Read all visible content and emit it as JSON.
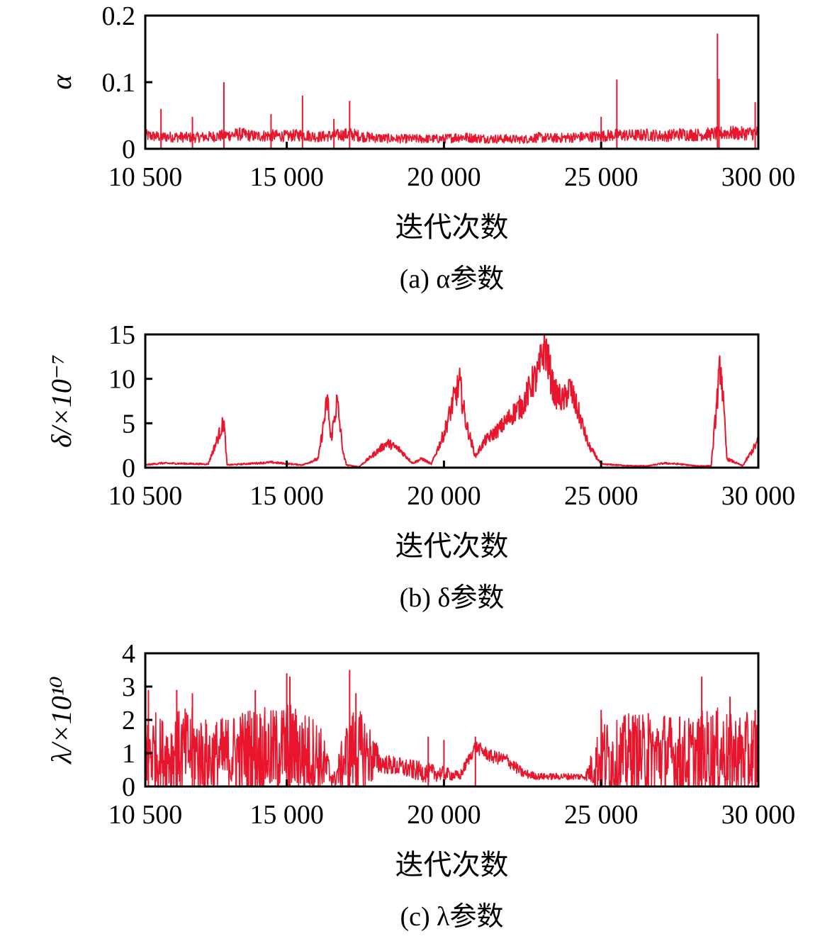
{
  "figure": {
    "line_color": "#e8152c"
  },
  "chart_data": [
    {
      "type": "line",
      "ylabel": "α",
      "xlabel": "迭代次数",
      "caption": "(a) α参数",
      "xlim": [
        10500,
        30000
      ],
      "ylim": [
        0,
        0.2
      ],
      "x_ticks": [
        10500,
        15000,
        20000,
        25000,
        30000
      ],
      "x_tick_labels": [
        "10 500",
        "15 000",
        "20 000",
        "25 000",
        "300 00"
      ],
      "y_ticks": [
        0,
        0.1,
        0.2
      ],
      "y_tick_labels": [
        "0",
        "0.1",
        "0.2"
      ],
      "series": [
        {
          "x": [
            10500,
            11000,
            11500,
            12000,
            12500,
            13000,
            13500,
            14000,
            14500,
            15000,
            15500,
            16000,
            16500,
            17000,
            17500,
            18000,
            18500,
            19000,
            19500,
            20000,
            20500,
            21000,
            21500,
            22000,
            22500,
            23000,
            23500,
            24000,
            24500,
            25000,
            25500,
            26000,
            26500,
            27000,
            27500,
            28000,
            28500,
            29000,
            29500,
            30000
          ],
          "y": [
            0.02,
            0.018,
            0.018,
            0.017,
            0.018,
            0.02,
            0.022,
            0.019,
            0.02,
            0.019,
            0.021,
            0.018,
            0.02,
            0.022,
            0.018,
            0.016,
            0.015,
            0.015,
            0.015,
            0.015,
            0.018,
            0.016,
            0.015,
            0.015,
            0.014,
            0.017,
            0.016,
            0.017,
            0.018,
            0.019,
            0.021,
            0.02,
            0.021,
            0.019,
            0.022,
            0.021,
            0.022,
            0.024,
            0.023,
            0.024
          ],
          "spikes": [
            [
              11000,
              0.06
            ],
            [
              12000,
              0.048
            ],
            [
              13000,
              0.1
            ],
            [
              14500,
              0.052
            ],
            [
              15500,
              0.08
            ],
            [
              16500,
              0.045
            ],
            [
              17000,
              0.072
            ],
            [
              25000,
              0.048
            ],
            [
              25500,
              0.104
            ],
            [
              28700,
              0.173
            ],
            [
              28750,
              0.105
            ],
            [
              29900,
              0.07
            ]
          ]
        }
      ]
    },
    {
      "type": "line",
      "ylabel": "δ/×10⁻⁷",
      "xlabel": "迭代次数",
      "caption": "(b) δ参数",
      "xlim": [
        10500,
        30000
      ],
      "ylim": [
        0,
        15
      ],
      "x_ticks": [
        10500,
        15000,
        20000,
        25000,
        30000
      ],
      "x_tick_labels": [
        "10 500",
        "15 000",
        "20 000",
        "25 000",
        "30 000"
      ],
      "y_ticks": [
        0,
        5,
        10,
        15
      ],
      "y_tick_labels": [
        "0",
        "5",
        "10",
        "15"
      ],
      "series": [
        {
          "x": [
            10500,
            11000,
            12500,
            13000,
            13100,
            14500,
            15500,
            16000,
            16300,
            16400,
            16600,
            16800,
            16900,
            17300,
            17800,
            18200,
            18600,
            19000,
            19300,
            19600,
            20000,
            20300,
            20500,
            20700,
            21000,
            21300,
            21800,
            22300,
            22500,
            22800,
            23000,
            23200,
            23500,
            23800,
            24000,
            24300,
            24600,
            25000,
            25500,
            26000,
            26500,
            27000,
            27500,
            28000,
            28500,
            28800,
            29000,
            29500,
            30000
          ],
          "y": [
            0.3,
            0.5,
            0.4,
            5.2,
            0.3,
            0.6,
            0.3,
            1.0,
            7.8,
            3.0,
            7.5,
            1.5,
            0.3,
            0.1,
            1.6,
            2.8,
            2.0,
            0.5,
            1.0,
            0.4,
            3.8,
            7.5,
            9.5,
            5.0,
            1.3,
            3.0,
            4.5,
            6.5,
            7.0,
            9.5,
            10.5,
            14.0,
            8.5,
            7.5,
            9.0,
            6.0,
            2.5,
            0.4,
            0.3,
            0.2,
            0.2,
            0.5,
            0.4,
            0.2,
            0.2,
            12.0,
            1.0,
            0.2,
            3.0
          ]
        }
      ]
    },
    {
      "type": "line",
      "ylabel": "λ/×10¹⁰",
      "xlabel": "迭代次数",
      "caption": "(c) λ参数",
      "xlim": [
        10500,
        30000
      ],
      "ylim": [
        0,
        4
      ],
      "x_ticks": [
        10500,
        15000,
        20000,
        25000,
        30000
      ],
      "x_tick_labels": [
        "10 500",
        "15 000",
        "20 000",
        "25 000",
        "30 000"
      ],
      "y_ticks": [
        0,
        1,
        2,
        3,
        4
      ],
      "y_tick_labels": [
        "0",
        "1",
        "2",
        "3",
        "4"
      ],
      "series": [
        {
          "x": [
            10500,
            11000,
            11500,
            12000,
            12500,
            13000,
            13500,
            14000,
            14500,
            15000,
            15500,
            16000,
            16500,
            17000,
            17500,
            18000,
            18500,
            19000,
            19500,
            20000,
            20500,
            21000,
            21500,
            22000,
            22500,
            23000,
            23500,
            24000,
            24500,
            25000,
            25500,
            26000,
            26500,
            27000,
            27500,
            28000,
            28500,
            29000,
            29500,
            30000
          ],
          "y": [
            1.2,
            0.9,
            1.0,
            1.1,
            0.8,
            0.9,
            1.0,
            1.1,
            1.0,
            1.2,
            1.0,
            0.9,
            0.2,
            1.1,
            1.0,
            0.7,
            0.6,
            0.5,
            0.4,
            0.4,
            0.3,
            1.2,
            0.9,
            0.8,
            0.4,
            0.3,
            0.3,
            0.3,
            0.3,
            0.9,
            0.8,
            1.0,
            0.9,
            1.0,
            0.8,
            0.9,
            1.0,
            1.0,
            0.9,
            1.0
          ],
          "noise": [
            1.4,
            1.2,
            1.3,
            1.3,
            1.2,
            1.2,
            1.3,
            1.4,
            1.3,
            1.4,
            1.3,
            1.2,
            0.2,
            1.3,
            1.2,
            0.3,
            0.3,
            0.3,
            0.3,
            0.2,
            0.15,
            0.2,
            0.2,
            0.2,
            0.15,
            0.1,
            0.1,
            0.1,
            0.1,
            1.2,
            1.2,
            1.3,
            1.2,
            1.3,
            1.2,
            1.3,
            1.4,
            1.3,
            1.3,
            1.3
          ],
          "spikes": [
            [
              10600,
              2.9
            ],
            [
              11500,
              2.9
            ],
            [
              12000,
              2.8
            ],
            [
              14000,
              2.9
            ],
            [
              15000,
              3.4
            ],
            [
              15100,
              3.3
            ],
            [
              17000,
              3.5
            ],
            [
              17200,
              2.8
            ],
            [
              19500,
              1.5
            ],
            [
              20000,
              1.4
            ],
            [
              21000,
              1.5
            ],
            [
              25000,
              2.3
            ],
            [
              26000,
              2.1
            ],
            [
              26500,
              2.2
            ],
            [
              27500,
              2.1
            ],
            [
              28200,
              3.3
            ],
            [
              29100,
              2.7
            ],
            [
              29900,
              2.3
            ]
          ]
        }
      ]
    }
  ]
}
